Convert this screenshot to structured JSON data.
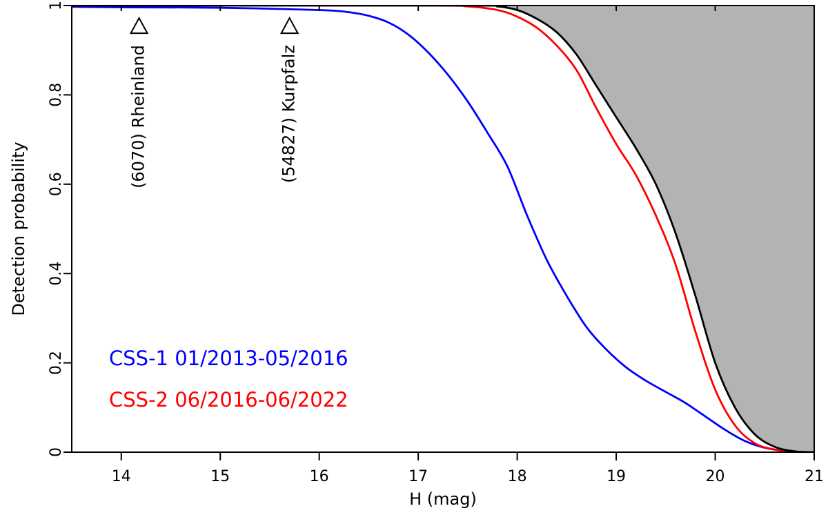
{
  "chart_data": {
    "type": "line",
    "xlabel": "H (mag)",
    "ylabel": "Detection probability",
    "xlim": [
      13.5,
      21
    ],
    "ylim": [
      0,
      1
    ],
    "xticks": [
      "14",
      "15",
      "16",
      "17",
      "18",
      "19",
      "20",
      "21"
    ],
    "yticks": [
      "0",
      "0.2",
      "0.4",
      "0.6",
      "0.8",
      "1"
    ],
    "grid": false,
    "series": [
      {
        "name": "CSS-1 01/2013-05/2016",
        "color": "#0000ff",
        "x": [
          13.5,
          14.0,
          15.0,
          16.0,
          16.3,
          16.5,
          16.7,
          16.9,
          17.1,
          17.3,
          17.5,
          17.7,
          17.9,
          18.1,
          18.3,
          18.5,
          18.7,
          18.9,
          19.1,
          19.3,
          19.5,
          19.7,
          19.9,
          20.1,
          20.3,
          20.5,
          20.7,
          20.9,
          21.0
        ],
        "y": [
          0.997,
          0.996,
          0.995,
          0.99,
          0.985,
          0.977,
          0.962,
          0.935,
          0.895,
          0.845,
          0.785,
          0.715,
          0.64,
          0.53,
          0.43,
          0.35,
          0.28,
          0.23,
          0.19,
          0.16,
          0.135,
          0.11,
          0.08,
          0.05,
          0.025,
          0.01,
          0.003,
          0.0,
          0.0
        ]
      },
      {
        "name": "CSS-2 06/2016-06/2022",
        "color": "#ff0000",
        "x": [
          13.5,
          17.0,
          17.5,
          17.8,
          18.0,
          18.2,
          18.4,
          18.6,
          18.8,
          19.0,
          19.2,
          19.4,
          19.6,
          19.8,
          20.0,
          20.2,
          20.4,
          20.6,
          20.8,
          21.0
        ],
        "y": [
          1.0,
          1.0,
          0.998,
          0.99,
          0.975,
          0.95,
          0.91,
          0.855,
          0.77,
          0.69,
          0.62,
          0.53,
          0.42,
          0.27,
          0.14,
          0.06,
          0.02,
          0.006,
          0.001,
          0.0
        ]
      },
      {
        "name": "",
        "color": "#000000",
        "x": [
          13.5,
          17.5,
          17.8,
          18.0,
          18.2,
          18.4,
          18.6,
          18.8,
          19.0,
          19.2,
          19.4,
          19.6,
          19.8,
          20.0,
          20.2,
          20.4,
          20.6,
          20.8,
          21.0
        ],
        "y": [
          1.0,
          1.0,
          0.998,
          0.99,
          0.97,
          0.94,
          0.89,
          0.82,
          0.75,
          0.68,
          0.6,
          0.49,
          0.35,
          0.2,
          0.1,
          0.04,
          0.012,
          0.002,
          0.0
        ]
      }
    ],
    "shaded_region": "above black curve",
    "shade_color": "#b3b3b3",
    "annotations": [
      {
        "label": "(6070)  Rheinland",
        "x": 14.18,
        "y": 0.955
      },
      {
        "label": "(54827)  Kurpfalz",
        "x": 15.7,
        "y": 0.955
      }
    ],
    "legend": {
      "placement": "bottom-left",
      "entries": [
        "CSS-1 01/2013-05/2016",
        "CSS-2 06/2016-06/2022"
      ]
    }
  }
}
